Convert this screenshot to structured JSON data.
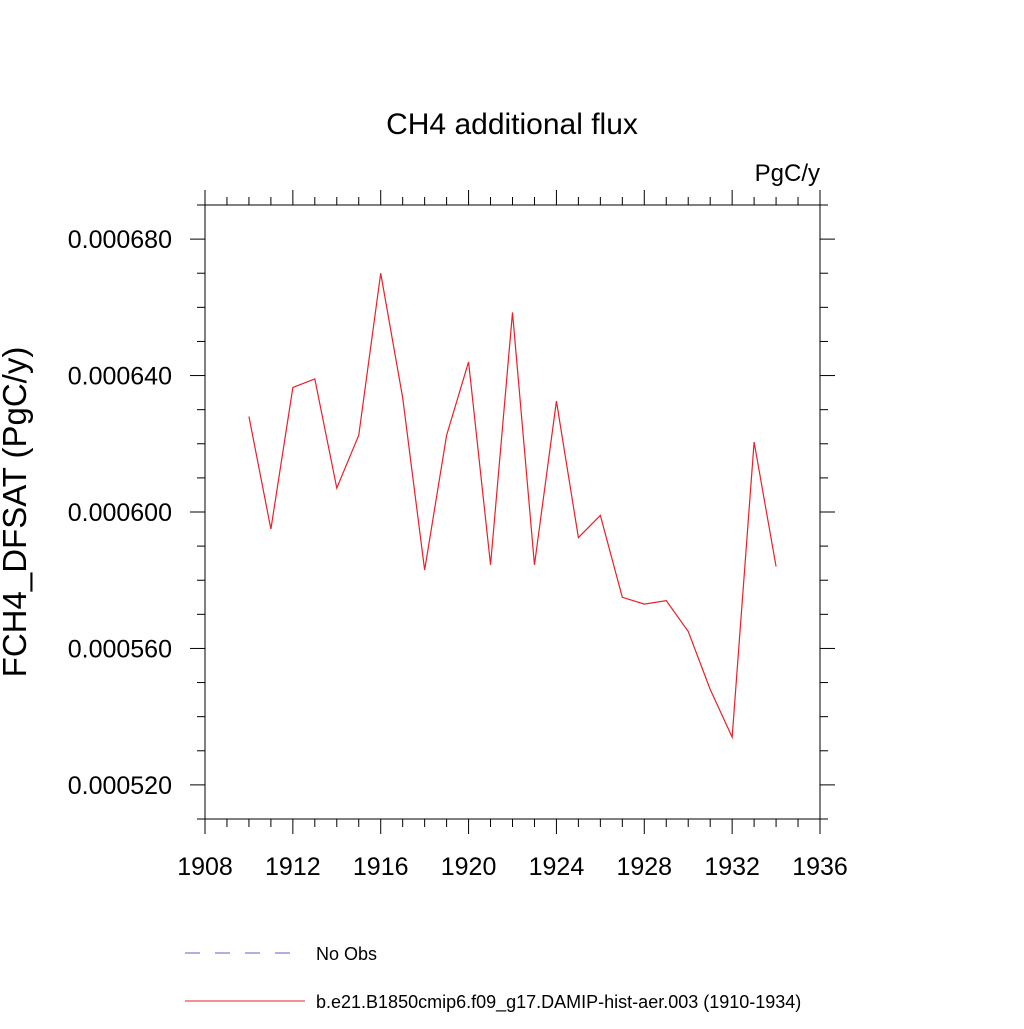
{
  "chart_data": {
    "type": "line",
    "title": "CH4 additional flux",
    "units_label": "PgC/y",
    "xlabel": "",
    "ylabel": "FCH4_DFSAT  (PgC/y)",
    "xlim": [
      1908,
      1936
    ],
    "ylim": [
      0.00051,
      0.00069
    ],
    "x_ticks": [
      1908,
      1912,
      1916,
      1920,
      1924,
      1928,
      1932,
      1936
    ],
    "x_tick_labels": [
      "1908",
      "1912",
      "1916",
      "1920",
      "1924",
      "1928",
      "1932",
      "1936"
    ],
    "y_ticks": [
      0.00052,
      0.00056,
      0.0006,
      0.00064,
      0.00068
    ],
    "y_tick_labels": [
      "0.000520",
      "0.000560",
      "0.000600",
      "0.000640",
      "0.000680"
    ],
    "grid": false,
    "legend_position": "bottom",
    "series": [
      {
        "name": "No Obs",
        "color": "#6a5acd",
        "dash": "dashed",
        "x": [],
        "values": []
      },
      {
        "name": "b.e21.B1850cmip6.f09_g17.DAMIP-hist-aer.003 (1910-1934)",
        "color": "#e8202a",
        "dash": "solid",
        "x": [
          1910,
          1911,
          1912,
          1913,
          1914,
          1915,
          1916,
          1917,
          1918,
          1919,
          1920,
          1921,
          1922,
          1923,
          1924,
          1925,
          1926,
          1927,
          1928,
          1929,
          1930,
          1931,
          1932,
          1933,
          1934
        ],
        "values": [
          0.000628,
          0.000595,
          0.0006365,
          0.000639,
          0.000607,
          0.0006225,
          0.00067,
          0.0006335,
          0.000583,
          0.0006225,
          0.000644,
          0.0005845,
          0.0006585,
          0.0005845,
          0.0006325,
          0.0005925,
          0.000599,
          0.000575,
          0.000573,
          0.000574,
          0.000565,
          0.000548,
          0.000534,
          0.0006205,
          0.000584
        ]
      }
    ]
  }
}
